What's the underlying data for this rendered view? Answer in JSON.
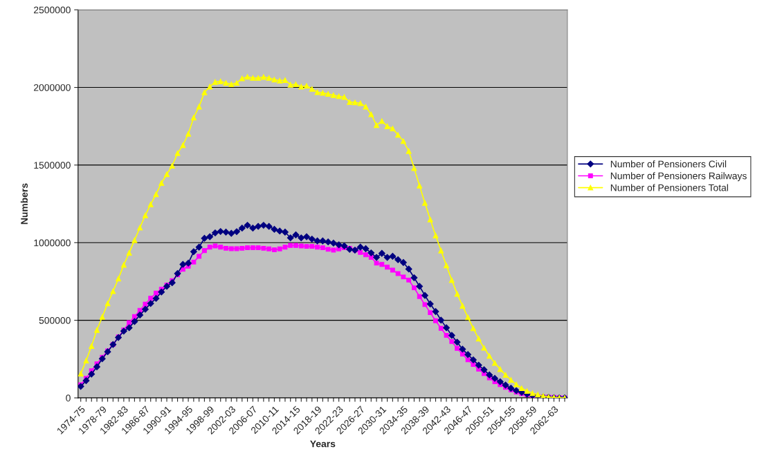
{
  "chart_data": {
    "type": "line",
    "xlabel": "Years",
    "ylabel": "Numbers",
    "categories": [
      "1974-75",
      null,
      null,
      null,
      "1978-79",
      null,
      null,
      null,
      "1982-83",
      null,
      null,
      null,
      "1986-87",
      null,
      null,
      null,
      "1990-91",
      null,
      null,
      null,
      "1994-95",
      null,
      null,
      null,
      "1998-99",
      null,
      null,
      null,
      "2002-03",
      null,
      null,
      null,
      "2006-07",
      null,
      null,
      null,
      "2010-11",
      null,
      null,
      null,
      "2014-15",
      null,
      null,
      null,
      "2018-19",
      null,
      null,
      null,
      "2022-23",
      null,
      null,
      null,
      "2026-27",
      null,
      null,
      null,
      "2030-31",
      null,
      null,
      null,
      "2034-35",
      null,
      null,
      null,
      "2038-39",
      null,
      null,
      null,
      "2042-43",
      null,
      null,
      null,
      "2046-47",
      null,
      null,
      null,
      "2050-51",
      null,
      null,
      null,
      "2054-55",
      null,
      null,
      null,
      "2058-59",
      null,
      null,
      null,
      "2062-63",
      null,
      null
    ],
    "series": [
      {
        "name": "Number of Pensioners Civil",
        "color": "#000080",
        "marker": "diamond",
        "values": [
          74000,
          111000,
          153000,
          200000,
          252000,
          297000,
          344000,
          389000,
          430000,
          452000,
          492000,
          534000,
          571000,
          608000,
          641000,
          682000,
          719000,
          742000,
          801000,
          860000,
          868000,
          942000,
          971000,
          1028000,
          1038000,
          1063000,
          1072000,
          1068000,
          1060000,
          1071000,
          1094000,
          1112000,
          1094000,
          1105000,
          1112000,
          1105000,
          1086000,
          1075000,
          1068000,
          1031000,
          1050000,
          1031000,
          1038000,
          1023000,
          1011000,
          1011000,
          1005000,
          997000,
          986000,
          979000,
          957000,
          952000,
          971000,
          961000,
          934000,
          905000,
          931000,
          905000,
          912000,
          890000,
          872000,
          830000,
          774000,
          719000,
          660000,
          605000,
          556000,
          501000,
          452000,
          403000,
          359000,
          314000,
          279000,
          245000,
          211000,
          181000,
          148000,
          126000,
          104000,
          82000,
          62000,
          47000,
          36000,
          24000,
          15000,
          9000,
          6000,
          3000,
          1000,
          0,
          0
        ]
      },
      {
        "name": "Number of Pensioners Railways",
        "color": "#ff00ff",
        "marker": "square",
        "values": [
          85000,
          126000,
          175000,
          219000,
          262000,
          303000,
          344000,
          393000,
          437000,
          485000,
          524000,
          564000,
          604000,
          642000,
          675000,
          700000,
          727000,
          756000,
          793000,
          828000,
          848000,
          875000,
          912000,
          949000,
          971000,
          979000,
          971000,
          964000,
          961000,
          961000,
          964000,
          967000,
          967000,
          967000,
          964000,
          960000,
          954000,
          960000,
          971000,
          982000,
          982000,
          979000,
          976000,
          976000,
          971000,
          967000,
          957000,
          952000,
          960000,
          967000,
          964000,
          952000,
          937000,
          922000,
          905000,
          868000,
          860000,
          842000,
          823000,
          801000,
          779000,
          759000,
          709000,
          653000,
          601000,
          549000,
          497000,
          448000,
          403000,
          363000,
          319000,
          282000,
          245000,
          215000,
          185000,
          156000,
          129000,
          104000,
          85000,
          67000,
          52000,
          37000,
          27000,
          19000,
          13000,
          9000,
          6000,
          4000,
          3000,
          1000,
          0
        ]
      },
      {
        "name": "Number of Pensioners Total",
        "color": "#ffff00",
        "marker": "triangle",
        "values": [
          156000,
          240000,
          334000,
          437000,
          522000,
          608000,
          687000,
          768000,
          857000,
          934000,
          1016000,
          1097000,
          1176000,
          1246000,
          1312000,
          1384000,
          1441000,
          1495000,
          1576000,
          1628000,
          1701000,
          1806000,
          1876000,
          1968000,
          2005000,
          2035000,
          2039000,
          2029000,
          2020000,
          2029000,
          2058000,
          2068000,
          2061000,
          2061000,
          2067000,
          2061000,
          2050000,
          2044000,
          2047000,
          2017000,
          2020000,
          2005000,
          2010000,
          1990000,
          1969000,
          1965000,
          1958000,
          1950000,
          1943000,
          1938000,
          1906000,
          1903000,
          1898000,
          1876000,
          1827000,
          1757000,
          1783000,
          1750000,
          1735000,
          1694000,
          1654000,
          1590000,
          1480000,
          1367000,
          1256000,
          1149000,
          1046000,
          949000,
          853000,
          759000,
          670000,
          593000,
          519000,
          448000,
          381000,
          322000,
          270000,
          225000,
          185000,
          148000,
          116000,
          86000,
          62000,
          44000,
          30000,
          21000,
          12000,
          6000,
          3000,
          1000,
          0
        ]
      }
    ],
    "ylim": [
      0,
      2500000
    ],
    "yticks": [
      0,
      500000,
      1000000,
      1500000,
      2000000,
      2500000
    ],
    "grid": "y",
    "legend": "right",
    "line_style": "solid"
  }
}
